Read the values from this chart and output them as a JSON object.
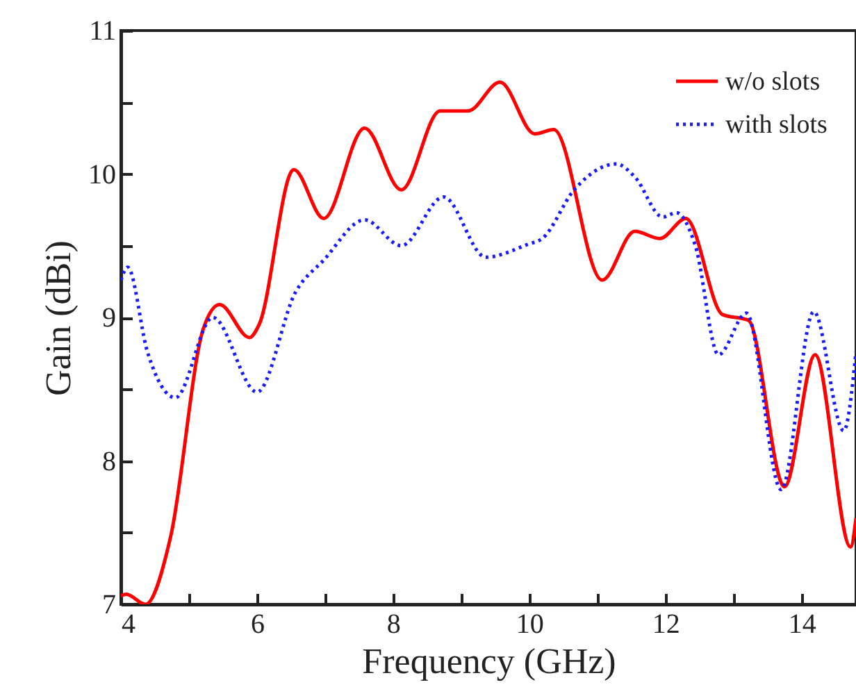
{
  "chart_data": {
    "type": "line",
    "xlabel": "Frequency (GHz)",
    "ylabel": "Gain (dBi)",
    "xlim": [
      4,
      14.8
    ],
    "xticks": [
      4,
      {
        "value": 5,
        "label": null
      },
      6,
      {
        "value": 7,
        "label": null
      },
      8,
      {
        "value": 9,
        "label": null
      },
      10,
      {
        "value": 11,
        "label": null
      },
      12,
      {
        "value": 13,
        "label": null
      },
      14
    ],
    "ylim": [
      7,
      11
    ],
    "yticks": [
      7,
      {
        "value": 7.5,
        "label": null
      },
      8,
      {
        "value": 8.5,
        "label": null
      },
      9,
      {
        "value": 9.5,
        "label": null
      },
      10,
      {
        "value": 10.5,
        "label": null
      },
      11
    ],
    "legend": "top right",
    "grid": false,
    "series": [
      {
        "name": "w/o  slots",
        "color": "#ff0000",
        "line_style": "solid",
        "x": [
          4.0,
          4.08,
          4.36,
          4.73,
          5.21,
          5.45,
          5.89,
          6.03,
          6.54,
          6.98,
          7.58,
          8.12,
          8.69,
          9.1,
          9.57,
          10.08,
          10.36,
          11.07,
          11.55,
          11.92,
          12.3,
          12.84,
          13.22,
          13.75,
          14.2,
          14.72,
          14.8
        ],
        "values": [
          7.06,
          7.07,
          7.0,
          7.47,
          8.92,
          9.09,
          8.86,
          8.95,
          10.03,
          9.69,
          10.32,
          9.89,
          10.44,
          10.44,
          10.64,
          10.28,
          10.31,
          9.26,
          9.6,
          9.55,
          9.69,
          9.02,
          8.98,
          7.82,
          8.74,
          7.4,
          7.6
        ]
      },
      {
        "name": "with slots",
        "color": "#1a1aff",
        "line_style": "dotted",
        "x": [
          4.0,
          4.1,
          4.39,
          4.8,
          5.35,
          6.0,
          6.57,
          6.98,
          7.58,
          8.12,
          8.74,
          9.36,
          9.98,
          10.19,
          10.66,
          11.28,
          11.55,
          11.96,
          12.16,
          12.44,
          12.78,
          13.19,
          13.7,
          14.18,
          14.62,
          14.8
        ],
        "values": [
          9.26,
          9.35,
          8.76,
          8.44,
          9.0,
          8.48,
          9.18,
          9.4,
          9.68,
          9.5,
          9.84,
          9.42,
          9.51,
          9.55,
          9.89,
          10.07,
          9.98,
          9.7,
          9.73,
          9.5,
          8.74,
          9.03,
          7.8,
          9.04,
          8.21,
          8.76
        ]
      }
    ]
  }
}
